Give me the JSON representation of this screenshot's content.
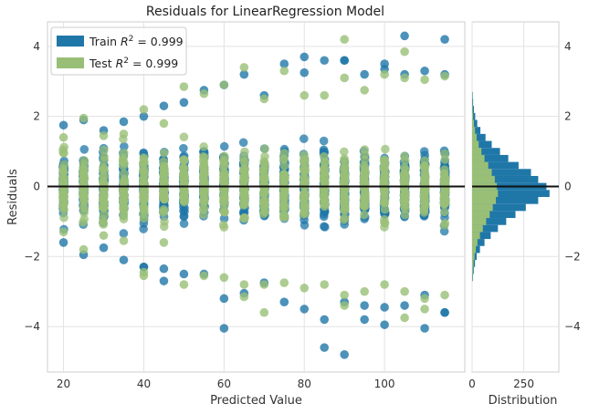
{
  "chart_data": [
    {
      "type": "scatter",
      "title": "Residuals for LinearRegression Model",
      "xlabel": "Predicted Value",
      "ylabel": "Residuals",
      "xlim": [
        16,
        120
      ],
      "ylim": [
        -5.3,
        4.7
      ],
      "xticks": [
        20,
        40,
        60,
        80,
        100
      ],
      "yticks": [
        -4,
        -2,
        0,
        2,
        4
      ],
      "grid": true,
      "legend_position": "top-left",
      "categories": [
        20,
        25,
        30,
        35,
        40,
        45,
        50,
        55,
        60,
        65,
        70,
        75,
        80,
        85,
        90,
        95,
        100,
        105,
        110,
        115
      ],
      "series": [
        {
          "name": "Train",
          "r2": "0.999",
          "color": "#1f77a8",
          "bands": [
            {
              "x": 20,
              "min": -1.6,
              "max": 1.75
            },
            {
              "x": 25,
              "min": -1.95,
              "max": 1.9
            },
            {
              "x": 30,
              "min": -1.75,
              "max": 1.6
            },
            {
              "x": 35,
              "min": -2.1,
              "max": 1.85
            },
            {
              "x": 40,
              "min": -2.3,
              "max": 2.0
            },
            {
              "x": 45,
              "min": -2.7,
              "max": 2.3
            },
            {
              "x": 50,
              "min": -2.5,
              "max": 2.4
            },
            {
              "x": 55,
              "min": -2.5,
              "max": 2.75
            },
            {
              "x": 60,
              "min": -3.2,
              "max": 2.9
            },
            {
              "x": 65,
              "min": -3.05,
              "max": 3.2
            },
            {
              "x": 70,
              "min": -2.75,
              "max": 2.6
            },
            {
              "x": 75,
              "min": -3.3,
              "max": 3.5
            },
            {
              "x": 80,
              "min": -3.5,
              "max": 3.25
            },
            {
              "x": 85,
              "min": -3.8,
              "max": 3.6
            },
            {
              "x": 90,
              "min": -3.3,
              "max": 3.6
            },
            {
              "x": 95,
              "min": -3.4,
              "max": 3.2
            },
            {
              "x": 100,
              "min": -3.45,
              "max": 3.5
            },
            {
              "x": 105,
              "min": -3.4,
              "max": 3.2
            },
            {
              "x": 110,
              "min": -3.1,
              "max": 3.3
            },
            {
              "x": 115,
              "min": -3.6,
              "max": 3.2
            }
          ],
          "outliers": [
            {
              "x": 60,
              "y": -4.05
            },
            {
              "x": 85,
              "y": -4.6
            },
            {
              "x": 90,
              "y": -4.8
            },
            {
              "x": 100,
              "y": -3.95
            },
            {
              "x": 110,
              "y": -4.05
            },
            {
              "x": 115,
              "y": -3.6
            },
            {
              "x": 95,
              "y": -3.8
            },
            {
              "x": 105,
              "y": 4.3
            },
            {
              "x": 115,
              "y": 4.2
            },
            {
              "x": 80,
              "y": 3.7
            },
            {
              "x": 90,
              "y": 3.6
            },
            {
              "x": 100,
              "y": 3.35
            },
            {
              "x": 45,
              "y": -2.35
            },
            {
              "x": 40,
              "y": -2.3
            }
          ]
        },
        {
          "name": "Test",
          "r2": "0.999",
          "color": "#99bf77",
          "bands": [
            {
              "x": 20,
              "min": -1.3,
              "max": 1.4
            },
            {
              "x": 25,
              "min": -1.8,
              "max": 1.95
            },
            {
              "x": 30,
              "min": -1.4,
              "max": 1.45
            },
            {
              "x": 35,
              "min": -1.55,
              "max": 1.5
            },
            {
              "x": 40,
              "min": -2.45,
              "max": 2.2
            },
            {
              "x": 45,
              "min": -1.6,
              "max": 1.8
            },
            {
              "x": 50,
              "min": -2.8,
              "max": 2.85
            },
            {
              "x": 55,
              "min": -2.55,
              "max": 2.65
            },
            {
              "x": 60,
              "min": -2.6,
              "max": 2.9
            },
            {
              "x": 65,
              "min": -2.8,
              "max": 3.4
            },
            {
              "x": 70,
              "min": -2.8,
              "max": 2.5
            },
            {
              "x": 75,
              "min": -2.75,
              "max": 3.3
            },
            {
              "x": 80,
              "min": -2.9,
              "max": 2.6
            },
            {
              "x": 85,
              "min": -2.8,
              "max": 2.6
            },
            {
              "x": 90,
              "min": -3.1,
              "max": 3.1
            },
            {
              "x": 95,
              "min": -3.0,
              "max": 2.75
            },
            {
              "x": 100,
              "min": -2.8,
              "max": 3.2
            },
            {
              "x": 105,
              "min": -3.0,
              "max": 3.1
            },
            {
              "x": 110,
              "min": -3.2,
              "max": 3.05
            },
            {
              "x": 115,
              "min": -3.1,
              "max": 3.15
            }
          ],
          "outliers": [
            {
              "x": 90,
              "y": 4.2
            },
            {
              "x": 105,
              "y": 3.85
            },
            {
              "x": 70,
              "y": -3.6
            },
            {
              "x": 90,
              "y": -3.4
            },
            {
              "x": 105,
              "y": -3.75
            },
            {
              "x": 110,
              "y": -3.5
            },
            {
              "x": 40,
              "y": -2.55
            },
            {
              "x": 65,
              "y": -3.15
            }
          ]
        }
      ],
      "zero_line": 0
    },
    {
      "type": "bar",
      "orientation": "horizontal",
      "xlabel": "Distribution",
      "xticks": [
        0,
        250
      ],
      "xlim": [
        0,
        420
      ],
      "ylim": [
        -5.3,
        4.7
      ],
      "yticks": [
        -4,
        -2,
        0,
        2,
        4
      ],
      "bin_width": 0.2,
      "series": [
        {
          "name": "Train",
          "color": "#1f77a8",
          "bins": [
            {
              "y": -2.6,
              "count": 4
            },
            {
              "y": -2.4,
              "count": 8
            },
            {
              "y": -2.2,
              "count": 14
            },
            {
              "y": -2.0,
              "count": 22
            },
            {
              "y": -1.8,
              "count": 38
            },
            {
              "y": -1.6,
              "count": 60
            },
            {
              "y": -1.4,
              "count": 90
            },
            {
              "y": -1.2,
              "count": 125
            },
            {
              "y": -1.0,
              "count": 165
            },
            {
              "y": -0.8,
              "count": 210
            },
            {
              "y": -0.6,
              "count": 260
            },
            {
              "y": -0.4,
              "count": 320
            },
            {
              "y": -0.2,
              "count": 375
            },
            {
              "y": 0.0,
              "count": 360
            },
            {
              "y": 0.2,
              "count": 320
            },
            {
              "y": 0.4,
              "count": 285
            },
            {
              "y": 0.6,
              "count": 225
            },
            {
              "y": 0.8,
              "count": 175
            },
            {
              "y": 1.0,
              "count": 135
            },
            {
              "y": 1.2,
              "count": 95
            },
            {
              "y": 1.4,
              "count": 65
            },
            {
              "y": 1.6,
              "count": 40
            },
            {
              "y": 1.8,
              "count": 25
            },
            {
              "y": 2.0,
              "count": 15
            },
            {
              "y": 2.2,
              "count": 9
            },
            {
              "y": 2.4,
              "count": 5
            },
            {
              "y": 2.6,
              "count": 3
            }
          ]
        },
        {
          "name": "Test",
          "color": "#99bf77",
          "bins": [
            {
              "y": -2.6,
              "count": 2
            },
            {
              "y": -2.4,
              "count": 4
            },
            {
              "y": -2.2,
              "count": 7
            },
            {
              "y": -2.0,
              "count": 12
            },
            {
              "y": -1.8,
              "count": 18
            },
            {
              "y": -1.6,
              "count": 26
            },
            {
              "y": -1.4,
              "count": 38
            },
            {
              "y": -1.2,
              "count": 52
            },
            {
              "y": -1.0,
              "count": 68
            },
            {
              "y": -0.8,
              "count": 85
            },
            {
              "y": -0.6,
              "count": 100
            },
            {
              "y": -0.4,
              "count": 115
            },
            {
              "y": -0.2,
              "count": 125
            },
            {
              "y": 0.0,
              "count": 120
            },
            {
              "y": 0.2,
              "count": 110
            },
            {
              "y": 0.4,
              "count": 95
            },
            {
              "y": 0.6,
              "count": 78
            },
            {
              "y": 0.8,
              "count": 60
            },
            {
              "y": 1.0,
              "count": 45
            },
            {
              "y": 1.2,
              "count": 32
            },
            {
              "y": 1.4,
              "count": 22
            },
            {
              "y": 1.6,
              "count": 14
            },
            {
              "y": 1.8,
              "count": 9
            },
            {
              "y": 2.0,
              "count": 5
            },
            {
              "y": 2.2,
              "count": 3
            },
            {
              "y": 2.4,
              "count": 2
            },
            {
              "y": 2.6,
              "count": 1
            }
          ]
        }
      ]
    }
  ]
}
